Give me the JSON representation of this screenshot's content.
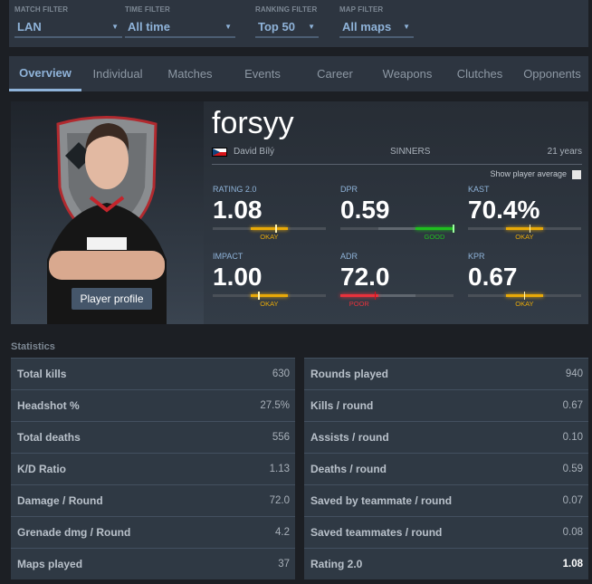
{
  "filters": [
    {
      "label": "MATCH FILTER",
      "value": "LAN"
    },
    {
      "label": "TIME FILTER",
      "value": "All time"
    },
    {
      "label": "RANKING FILTER",
      "value": "Top 50"
    },
    {
      "label": "MAP FILTER",
      "value": "All maps"
    }
  ],
  "tabs": [
    "Overview",
    "Individual",
    "Matches",
    "Events",
    "Career",
    "Weapons",
    "Clutches",
    "Opponents"
  ],
  "active_tab": "Overview",
  "player": {
    "nickname": "forsyy",
    "name": "David Bílý",
    "country": "Czech Republic",
    "team": "SINNERS",
    "age": "21 years",
    "profile_button": "Player profile"
  },
  "show_average_label": "Show player average",
  "show_average_checked": false,
  "colors": {
    "okay": "#e8a908",
    "good": "#1fbf1f",
    "poor": "#e8323c",
    "accent": "#8fb3d9"
  },
  "stats": [
    {
      "key": "RATING 2.0",
      "value": "1.08",
      "rating": "OKAY",
      "marker": 0.56
    },
    {
      "key": "DPR",
      "value": "0.59",
      "rating": "GOOD",
      "marker": 1.0
    },
    {
      "key": "KAST",
      "value": "70.4%",
      "rating": "OKAY",
      "marker": 0.55
    },
    {
      "key": "IMPACT",
      "value": "1.00",
      "rating": "OKAY",
      "marker": 0.41
    },
    {
      "key": "ADR",
      "value": "72.0",
      "rating": "POOR",
      "marker": 0.31
    },
    {
      "key": "KPR",
      "value": "0.67",
      "rating": "OKAY",
      "marker": 0.5
    }
  ],
  "statistics_title": "Statistics",
  "table_left": [
    {
      "label": "Total kills",
      "value": "630"
    },
    {
      "label": "Headshot %",
      "value": "27.5%"
    },
    {
      "label": "Total deaths",
      "value": "556"
    },
    {
      "label": "K/D Ratio",
      "value": "1.13"
    },
    {
      "label": "Damage / Round",
      "value": "72.0"
    },
    {
      "label": "Grenade dmg / Round",
      "value": "4.2"
    },
    {
      "label": "Maps played",
      "value": "37"
    }
  ],
  "table_right": [
    {
      "label": "Rounds played",
      "value": "940"
    },
    {
      "label": "Kills / round",
      "value": "0.67"
    },
    {
      "label": "Assists / round",
      "value": "0.10"
    },
    {
      "label": "Deaths / round",
      "value": "0.59"
    },
    {
      "label": "Saved by teammate / round",
      "value": "0.07"
    },
    {
      "label": "Saved teammates / round",
      "value": "0.08"
    },
    {
      "label": "Rating 2.0",
      "value": "1.08",
      "bold": true
    }
  ]
}
